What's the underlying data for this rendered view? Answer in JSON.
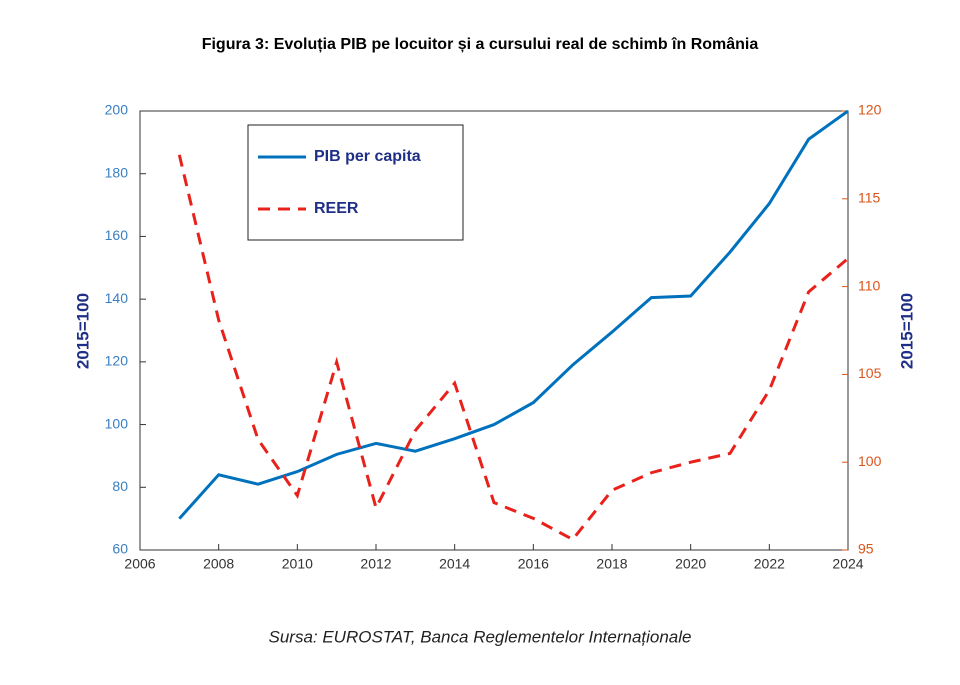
{
  "chart_data": {
    "type": "line",
    "title": "Figura 3: Evoluția PIB pe locuitor și a cursului real de schimb în România",
    "source": "Sursa: EUROSTAT, Banca Reglementelor Internaționale",
    "y_label": "2015=100",
    "y2_label": "2015=100",
    "x": [
      2007,
      2008,
      2009,
      2010,
      2011,
      2012,
      2013,
      2014,
      2015,
      2016,
      2017,
      2018,
      2019,
      2020,
      2021,
      2022,
      2023,
      2024
    ],
    "series": [
      {
        "name": "PIB per capita",
        "color": "#0072bd",
        "values": [
          70,
          84,
          81,
          85,
          90.5,
          94,
          91.5,
          95.5,
          100,
          107,
          119,
          129.5,
          140.5,
          141,
          155,
          170.5,
          191,
          200
        ]
      },
      {
        "name": "REER",
        "color": "#e8221b",
        "axis": "y2",
        "dashed": true,
        "values": [
          117.5,
          108.1,
          101.3,
          98.1,
          105.7,
          97.4,
          101.8,
          104.5,
          97.7,
          96.8,
          95.6,
          98.4,
          99.4,
          100,
          100.5,
          104.1,
          109.7,
          111.6
        ]
      }
    ],
    "xlim": [
      2006,
      2024
    ],
    "xticks": [
      2006,
      2008,
      2010,
      2012,
      2014,
      2016,
      2018,
      2020,
      2022,
      2024
    ],
    "ylim": [
      60,
      200
    ],
    "yticks": [
      60,
      80,
      100,
      120,
      140,
      160,
      180,
      200
    ],
    "y2lim": [
      95,
      120
    ],
    "y2ticks": [
      95,
      100,
      105,
      110,
      115,
      120
    ],
    "legend": "top-left"
  }
}
